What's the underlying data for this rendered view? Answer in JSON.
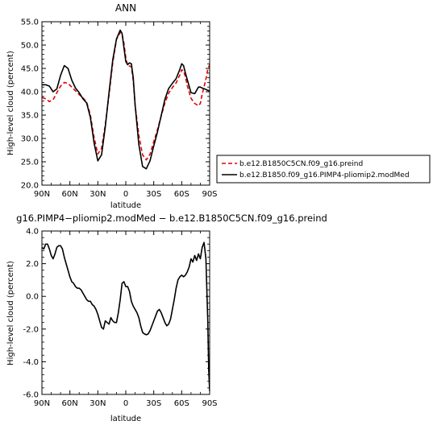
{
  "chart_data": [
    {
      "type": "line",
      "title": "ANN",
      "xlabel": "latitude",
      "ylabel": "High-level cloud (percent)",
      "x_range": [
        90,
        -90
      ],
      "ylim": [
        20,
        55
      ],
      "x_ticks": [
        {
          "value": 90,
          "label": "90N"
        },
        {
          "value": 60,
          "label": "60N"
        },
        {
          "value": 30,
          "label": "30N"
        },
        {
          "value": 0,
          "label": "0"
        },
        {
          "value": -30,
          "label": "30S"
        },
        {
          "value": -60,
          "label": "60S"
        },
        {
          "value": -90,
          "label": "90S"
        }
      ],
      "y_ticks": [
        "20.0",
        "25.0",
        "30.0",
        "35.0",
        "40.0",
        "45.0",
        "50.0",
        "55.0"
      ],
      "legend_position": "right",
      "series": [
        {
          "name": "b.e12.B1850C5CN.f09_g16.preind",
          "color": "#e00000",
          "dash": "dashed",
          "x": [
            90,
            86,
            82,
            78,
            74,
            70,
            66,
            62,
            58,
            54,
            50,
            46,
            42,
            38,
            34,
            30,
            26,
            22,
            18,
            14,
            10,
            6,
            4,
            2,
            0,
            -2,
            -4,
            -6,
            -8,
            -10,
            -14,
            -18,
            -22,
            -26,
            -30,
            -34,
            -38,
            -42,
            -46,
            -50,
            -54,
            -58,
            -60,
            -62,
            -64,
            -66,
            -70,
            -74,
            -78,
            -80,
            -82,
            -86,
            -88,
            -90
          ],
          "y": [
            38.8,
            38.5,
            37.9,
            38.3,
            39.8,
            41.2,
            42.0,
            41.8,
            41.0,
            40.2,
            39.4,
            38.7,
            37.8,
            35.0,
            30.2,
            26.7,
            27.9,
            32.9,
            39.3,
            46.2,
            51.2,
            52.7,
            52.3,
            50.4,
            47.3,
            45.6,
            45.5,
            45.4,
            42.4,
            37.1,
            30.7,
            26.5,
            25.4,
            26.6,
            29.3,
            31.9,
            34.8,
            37.6,
            39.7,
            40.9,
            41.9,
            43.6,
            44.7,
            44.5,
            43.2,
            41.3,
            38.6,
            37.5,
            37.0,
            37.5,
            39.5,
            42.7,
            44.8,
            45.8
          ]
        },
        {
          "name": "b.e12.B1850.f09_g16.PIMP4-pliomip2.modMed",
          "color": "#000000",
          "dash": "solid",
          "x": [
            90,
            86,
            82,
            78,
            74,
            70,
            66,
            62,
            58,
            54,
            50,
            46,
            42,
            38,
            34,
            30,
            26,
            22,
            18,
            14,
            10,
            6,
            4,
            2,
            0,
            -2,
            -4,
            -6,
            -8,
            -10,
            -14,
            -18,
            -22,
            -26,
            -30,
            -34,
            -38,
            -42,
            -46,
            -50,
            -54,
            -58,
            -60,
            -62,
            -64,
            -66,
            -70,
            -74,
            -78,
            -80,
            -82,
            -86,
            -88,
            -90
          ],
          "y": [
            41.5,
            41.5,
            41.2,
            40.0,
            40.6,
            43.5,
            45.6,
            45.0,
            42.5,
            40.8,
            39.8,
            38.5,
            37.6,
            34.5,
            29.0,
            25.2,
            26.5,
            32.5,
            39.8,
            46.8,
            51.3,
            53.2,
            52.5,
            49.5,
            46.5,
            45.8,
            46.2,
            46.0,
            43.0,
            37.2,
            28.7,
            24.0,
            23.5,
            25.2,
            28.4,
            31.4,
            34.9,
            38.4,
            40.7,
            41.8,
            42.8,
            44.8,
            46.0,
            45.6,
            44.0,
            42.6,
            39.8,
            39.6,
            41.0,
            41.0,
            40.8,
            40.5,
            40.3,
            40.2
          ]
        }
      ]
    },
    {
      "type": "line",
      "title": "g16.PIMP4−pliomip2.modMed − b.e12.B1850C5CN.f09_g16.preind",
      "xlabel": "latitude",
      "ylabel": "High-level cloud (percent)",
      "x_range": [
        90,
        -90
      ],
      "ylim": [
        -6,
        4
      ],
      "x_ticks": [
        {
          "value": 90,
          "label": "90N"
        },
        {
          "value": 60,
          "label": "60N"
        },
        {
          "value": 30,
          "label": "30N"
        },
        {
          "value": 0,
          "label": "0"
        },
        {
          "value": -30,
          "label": "30S"
        },
        {
          "value": -60,
          "label": "60S"
        },
        {
          "value": -90,
          "label": "90S"
        }
      ],
      "y_ticks": [
        "4.0",
        "2.0",
        "0.0",
        "-2.0",
        "-4.0",
        "-6.0"
      ],
      "series": [
        {
          "color": "#000000",
          "dash": "solid",
          "x": [
            90,
            88,
            86,
            84,
            82,
            80,
            78,
            76,
            74,
            72,
            70,
            68,
            66,
            64,
            62,
            60,
            58,
            56,
            54,
            52,
            50,
            48,
            46,
            44,
            42,
            40,
            38,
            36,
            34,
            32,
            30,
            28,
            26,
            24,
            22,
            20,
            18,
            16,
            14,
            12,
            10,
            8,
            6,
            4,
            2,
            0,
            -2,
            -4,
            -6,
            -8,
            -10,
            -12,
            -14,
            -16,
            -18,
            -20,
            -22,
            -24,
            -26,
            -28,
            -30,
            -32,
            -34,
            -36,
            -38,
            -40,
            -42,
            -44,
            -46,
            -48,
            -50,
            -52,
            -54,
            -56,
            -58,
            -60,
            -62,
            -64,
            -66,
            -68,
            -70,
            -72,
            -74,
            -76,
            -78,
            -80,
            -82,
            -84,
            -86,
            -88,
            -89,
            -90
          ],
          "y": [
            3.0,
            2.9,
            3.2,
            3.2,
            2.9,
            2.5,
            2.3,
            2.6,
            3.0,
            3.1,
            3.1,
            2.9,
            2.4,
            2.0,
            1.6,
            1.2,
            0.9,
            0.8,
            0.6,
            0.5,
            0.5,
            0.4,
            0.2,
            0.0,
            -0.2,
            -0.3,
            -0.3,
            -0.5,
            -0.6,
            -0.8,
            -1.1,
            -1.5,
            -1.9,
            -2.0,
            -1.5,
            -1.6,
            -1.7,
            -1.3,
            -1.5,
            -1.6,
            -1.6,
            -1.0,
            -0.2,
            0.8,
            0.9,
            0.6,
            0.6,
            0.3,
            -0.3,
            -0.6,
            -0.8,
            -1.0,
            -1.3,
            -1.8,
            -2.2,
            -2.3,
            -2.35,
            -2.3,
            -2.1,
            -1.8,
            -1.5,
            -1.2,
            -0.9,
            -0.8,
            -1.0,
            -1.3,
            -1.6,
            -1.8,
            -1.7,
            -1.4,
            -0.8,
            -0.2,
            0.5,
            1.0,
            1.2,
            1.3,
            1.2,
            1.3,
            1.5,
            1.8,
            2.3,
            2.1,
            2.5,
            2.2,
            2.6,
            2.3,
            3.0,
            3.3,
            2.3,
            -1.5,
            -4.5,
            -5.8
          ]
        }
      ]
    }
  ]
}
